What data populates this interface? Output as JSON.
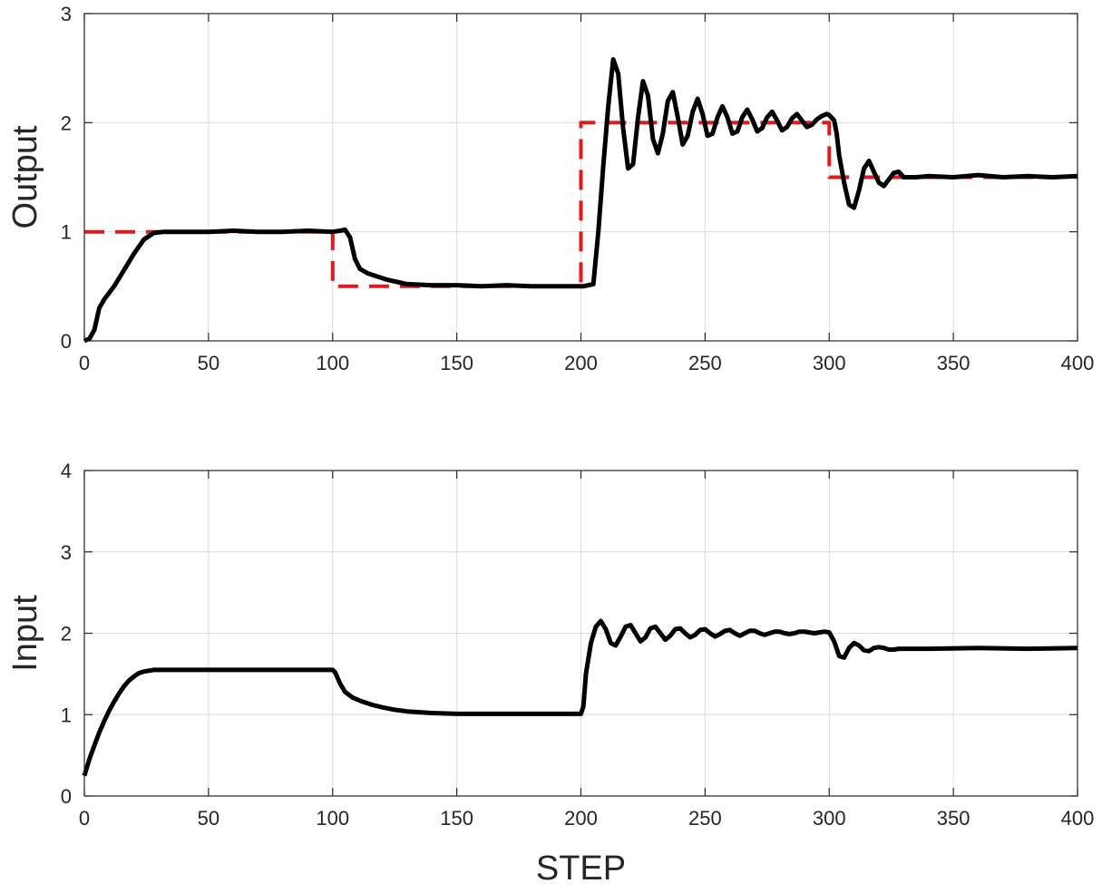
{
  "chart_data": [
    {
      "type": "line",
      "ylabel": "Output",
      "xlabel": "",
      "xlim": [
        0,
        400
      ],
      "ylim": [
        0,
        3
      ],
      "xticks": [
        0,
        50,
        100,
        150,
        200,
        250,
        300,
        350,
        400
      ],
      "yticks": [
        0,
        1,
        2,
        3
      ],
      "grid": true,
      "series": [
        {
          "role": "reference",
          "style": "dashed",
          "color": "#e31a1c",
          "x": [
            0,
            100,
            100,
            200,
            200,
            300,
            300,
            400
          ],
          "y": [
            1,
            1,
            0.5,
            0.5,
            2,
            2,
            1.5,
            1.5
          ]
        },
        {
          "role": "output",
          "style": "solid",
          "color": "#000000",
          "x": [
            0,
            2,
            4,
            6,
            8,
            12,
            16,
            20,
            24,
            28,
            32,
            40,
            50,
            60,
            70,
            80,
            90,
            100,
            103,
            105,
            107,
            109,
            111,
            114,
            118,
            122,
            126,
            130,
            140,
            150,
            160,
            170,
            180,
            190,
            198,
            201,
            203,
            205,
            207,
            209,
            211,
            213,
            215,
            217,
            219,
            221,
            223,
            225,
            227,
            229,
            231,
            233,
            235,
            237,
            239,
            241,
            243,
            245,
            247,
            249,
            251,
            253,
            255,
            257,
            259,
            261,
            263,
            265,
            267,
            269,
            271,
            273,
            275,
            277,
            279,
            281,
            283,
            285,
            287,
            289,
            291,
            293,
            295,
            297,
            299,
            300,
            302,
            303,
            304,
            306,
            308,
            310,
            312,
            314,
            316,
            318,
            320,
            322,
            324,
            326,
            328,
            330,
            335,
            340,
            350,
            360,
            370,
            380,
            390,
            400
          ],
          "y": [
            0,
            0.02,
            0.1,
            0.3,
            0.38,
            0.5,
            0.65,
            0.8,
            0.93,
            0.99,
            1.0,
            1.0,
            1.0,
            1.01,
            1.0,
            1.0,
            1.01,
            1.0,
            1.01,
            1.02,
            0.95,
            0.75,
            0.66,
            0.62,
            0.59,
            0.56,
            0.54,
            0.52,
            0.51,
            0.51,
            0.5,
            0.51,
            0.5,
            0.5,
            0.5,
            0.5,
            0.51,
            0.52,
            1.0,
            1.6,
            2.15,
            2.58,
            2.45,
            1.95,
            1.58,
            1.62,
            2.05,
            2.38,
            2.25,
            1.85,
            1.72,
            1.9,
            2.2,
            2.28,
            2.05,
            1.8,
            1.88,
            2.1,
            2.22,
            2.08,
            1.88,
            1.9,
            2.05,
            2.15,
            2.05,
            1.9,
            1.92,
            2.05,
            2.12,
            2.03,
            1.92,
            1.95,
            2.05,
            2.1,
            2.02,
            1.93,
            1.96,
            2.04,
            2.08,
            2.02,
            1.96,
            1.98,
            2.03,
            2.06,
            2.08,
            2.07,
            2.02,
            1.9,
            1.7,
            1.45,
            1.25,
            1.22,
            1.38,
            1.58,
            1.65,
            1.55,
            1.45,
            1.42,
            1.48,
            1.54,
            1.55,
            1.5,
            1.5,
            1.51,
            1.5,
            1.52,
            1.5,
            1.51,
            1.5,
            1.51
          ]
        }
      ]
    },
    {
      "type": "line",
      "ylabel": "Input",
      "xlabel": "STEP",
      "xlim": [
        0,
        400
      ],
      "ylim": [
        0,
        4
      ],
      "xticks": [
        0,
        50,
        100,
        150,
        200,
        250,
        300,
        350,
        400
      ],
      "yticks": [
        0,
        1,
        2,
        3,
        4
      ],
      "grid": true,
      "series": [
        {
          "role": "input",
          "style": "solid",
          "color": "#000000",
          "x": [
            0,
            2,
            4,
            6,
            8,
            10,
            12,
            14,
            16,
            18,
            20,
            22,
            24,
            26,
            28,
            30,
            40,
            60,
            80,
            100,
            101,
            103,
            105,
            108,
            112,
            116,
            120,
            125,
            130,
            140,
            150,
            160,
            170,
            180,
            190,
            200,
            201,
            202,
            204,
            206,
            208,
            210,
            212,
            214,
            216,
            218,
            220,
            222,
            224,
            226,
            228,
            230,
            232,
            234,
            236,
            238,
            240,
            242,
            244,
            246,
            248,
            250,
            252,
            254,
            256,
            258,
            260,
            262,
            264,
            266,
            268,
            270,
            272,
            274,
            276,
            278,
            280,
            282,
            284,
            286,
            288,
            290,
            292,
            294,
            296,
            298,
            300,
            302,
            304,
            306,
            308,
            310,
            312,
            314,
            316,
            318,
            320,
            322,
            324,
            326,
            328,
            330,
            340,
            360,
            380,
            400
          ],
          "y": [
            0.25,
            0.45,
            0.62,
            0.78,
            0.92,
            1.05,
            1.16,
            1.26,
            1.35,
            1.42,
            1.47,
            1.51,
            1.53,
            1.54,
            1.55,
            1.55,
            1.55,
            1.55,
            1.55,
            1.55,
            1.52,
            1.38,
            1.28,
            1.21,
            1.16,
            1.12,
            1.09,
            1.06,
            1.04,
            1.02,
            1.01,
            1.01,
            1.01,
            1.01,
            1.01,
            1.01,
            1.1,
            1.5,
            1.88,
            2.08,
            2.15,
            2.05,
            1.88,
            1.85,
            1.96,
            2.08,
            2.1,
            2.0,
            1.9,
            1.95,
            2.06,
            2.08,
            2.0,
            1.92,
            1.97,
            2.05,
            2.06,
            2.0,
            1.95,
            1.98,
            2.04,
            2.05,
            2.0,
            1.96,
            1.99,
            2.03,
            2.04,
            2.0,
            1.97,
            2.0,
            2.03,
            2.03,
            2.0,
            1.98,
            2.0,
            2.02,
            2.02,
            2.0,
            1.99,
            2.0,
            2.02,
            2.02,
            2.01,
            2.0,
            2.01,
            2.02,
            2.01,
            1.9,
            1.72,
            1.7,
            1.82,
            1.88,
            1.85,
            1.79,
            1.78,
            1.82,
            1.83,
            1.82,
            1.8,
            1.8,
            1.81,
            1.81,
            1.81,
            1.82,
            1.81,
            1.82
          ]
        }
      ]
    }
  ]
}
